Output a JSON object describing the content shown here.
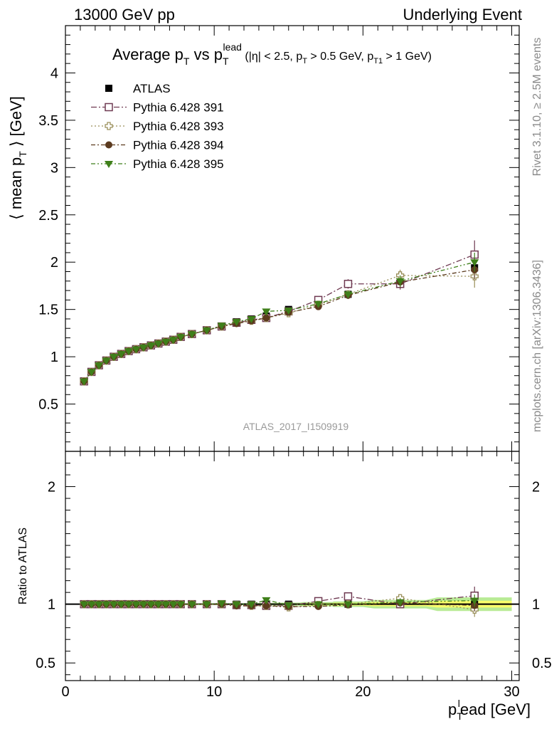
{
  "header": {
    "left": "13000 GeV pp",
    "right": "Underlying Event"
  },
  "title": {
    "main": "Average p",
    "main_sub": "T",
    "vs": " vs p",
    "vs_sub": "T",
    "vs_sup": "lead",
    "cond_a": " (|η| < 2.5, p",
    "cond_a_sub": "T",
    "cond_b": " > 0.5 GeV, p",
    "cond_b_sub": "T1",
    "cond_c": " > 1 GeV)"
  },
  "side_labels": {
    "rivet": "Rivet 3.1.10, ≥ 2.5M events",
    "mcplots": "mcplots.cern.ch [arXiv:1306.3436]"
  },
  "watermark": "ATLAS_2017_I1509919",
  "ratio_ylabel": "Ratio to ATLAS",
  "colors": {
    "data": "#000000",
    "p391": "#6f3a52",
    "p393": "#9a8f5a",
    "p394": "#5b3a1e",
    "p395": "#3f7f1a",
    "band_inner": "#ffff66",
    "band_outer": "#a6e67a"
  },
  "chart_data": {
    "type": "scatter",
    "x": [
      1.25,
      1.75,
      2.25,
      2.75,
      3.25,
      3.75,
      4.25,
      4.75,
      5.25,
      5.75,
      6.25,
      6.75,
      7.25,
      7.75,
      8.5,
      9.5,
      10.5,
      11.5,
      12.5,
      13.5,
      15.0,
      17.0,
      19.0,
      22.5,
      27.5
    ],
    "xlabel_main": "p",
    "xlabel_sub": "T",
    "xlabel_sup": "l",
    "xlabel_rest": "ead [GeV]",
    "ylabel_main": "⟨ mean p",
    "ylabel_sub": "T",
    "ylabel_rest": " ⟩ [GeV]",
    "xlim": [
      0,
      30.5
    ],
    "ylim": [
      0,
      4.5
    ],
    "ratio_ylim": [
      0.35,
      2.3
    ],
    "xticks": [
      0,
      10,
      20,
      30
    ],
    "yticks": [
      0.5,
      1,
      1.5,
      2,
      2.5,
      3,
      3.5,
      4
    ],
    "ratio_yticks": [
      0.5,
      1,
      2
    ],
    "legend_position": "top-left",
    "series": [
      {
        "name": "ATLAS",
        "key": "data",
        "marker": "square-filled",
        "values": [
          0.74,
          0.84,
          0.91,
          0.96,
          1.0,
          1.03,
          1.06,
          1.08,
          1.1,
          1.12,
          1.14,
          1.16,
          1.18,
          1.21,
          1.24,
          1.28,
          1.32,
          1.37,
          1.4,
          1.43,
          1.5,
          1.56,
          1.66,
          1.77,
          1.94
        ],
        "errors": [
          0.005,
          0.005,
          0.005,
          0.005,
          0.005,
          0.005,
          0.005,
          0.005,
          0.005,
          0.005,
          0.005,
          0.005,
          0.005,
          0.005,
          0.005,
          0.006,
          0.006,
          0.007,
          0.008,
          0.01,
          0.012,
          0.018,
          0.025,
          0.04,
          0.07
        ]
      },
      {
        "name": "Pythia 6.428 391",
        "key": "p391",
        "marker": "square-open",
        "dash": "8,3,2,3",
        "values": [
          0.74,
          0.84,
          0.91,
          0.96,
          1.0,
          1.03,
          1.06,
          1.08,
          1.1,
          1.12,
          1.14,
          1.16,
          1.18,
          1.21,
          1.24,
          1.28,
          1.32,
          1.36,
          1.39,
          1.41,
          1.48,
          1.6,
          1.77,
          1.77,
          2.08
        ],
        "errors": [
          0,
          0,
          0,
          0,
          0,
          0,
          0,
          0,
          0,
          0,
          0,
          0,
          0,
          0,
          0,
          0,
          0.005,
          0.005,
          0.008,
          0.01,
          0.015,
          0.03,
          0.05,
          0.06,
          0.15
        ]
      },
      {
        "name": "Pythia 6.428 393",
        "key": "p393",
        "marker": "cross-open",
        "dash": "2,3",
        "values": [
          0.74,
          0.84,
          0.91,
          0.96,
          1.0,
          1.03,
          1.06,
          1.08,
          1.1,
          1.12,
          1.14,
          1.16,
          1.18,
          1.21,
          1.24,
          1.28,
          1.32,
          1.36,
          1.38,
          1.41,
          1.46,
          1.55,
          1.66,
          1.86,
          1.85
        ],
        "errors": [
          0,
          0,
          0,
          0,
          0,
          0,
          0,
          0,
          0,
          0,
          0,
          0,
          0,
          0,
          0,
          0,
          0.005,
          0.005,
          0.008,
          0.01,
          0.015,
          0.03,
          0.04,
          0.06,
          0.12
        ]
      },
      {
        "name": "Pythia 6.428 394",
        "key": "p394",
        "marker": "circle-filled",
        "dash": "6,3,2,3",
        "values": [
          0.74,
          0.84,
          0.91,
          0.96,
          1.0,
          1.03,
          1.06,
          1.08,
          1.1,
          1.12,
          1.14,
          1.16,
          1.18,
          1.21,
          1.24,
          1.28,
          1.32,
          1.35,
          1.38,
          1.41,
          1.47,
          1.53,
          1.65,
          1.79,
          1.92
        ],
        "errors": [
          0,
          0,
          0,
          0,
          0,
          0,
          0,
          0,
          0,
          0,
          0,
          0,
          0,
          0,
          0,
          0,
          0.005,
          0.005,
          0.008,
          0.01,
          0.015,
          0.03,
          0.04,
          0.06,
          0.1
        ]
      },
      {
        "name": "Pythia 6.428 395",
        "key": "p395",
        "marker": "triangle-down-filled",
        "dash": "6,3,2,3,2,3",
        "values": [
          0.74,
          0.84,
          0.91,
          0.96,
          1.0,
          1.03,
          1.06,
          1.08,
          1.1,
          1.12,
          1.14,
          1.16,
          1.18,
          1.21,
          1.24,
          1.28,
          1.33,
          1.37,
          1.4,
          1.48,
          1.49,
          1.56,
          1.66,
          1.8,
          2.0
        ],
        "errors": [
          0,
          0,
          0,
          0,
          0,
          0,
          0,
          0,
          0,
          0,
          0,
          0,
          0,
          0,
          0,
          0,
          0.005,
          0.005,
          0.008,
          0.01,
          0.015,
          0.03,
          0.04,
          0.06,
          0.1
        ]
      }
    ]
  }
}
